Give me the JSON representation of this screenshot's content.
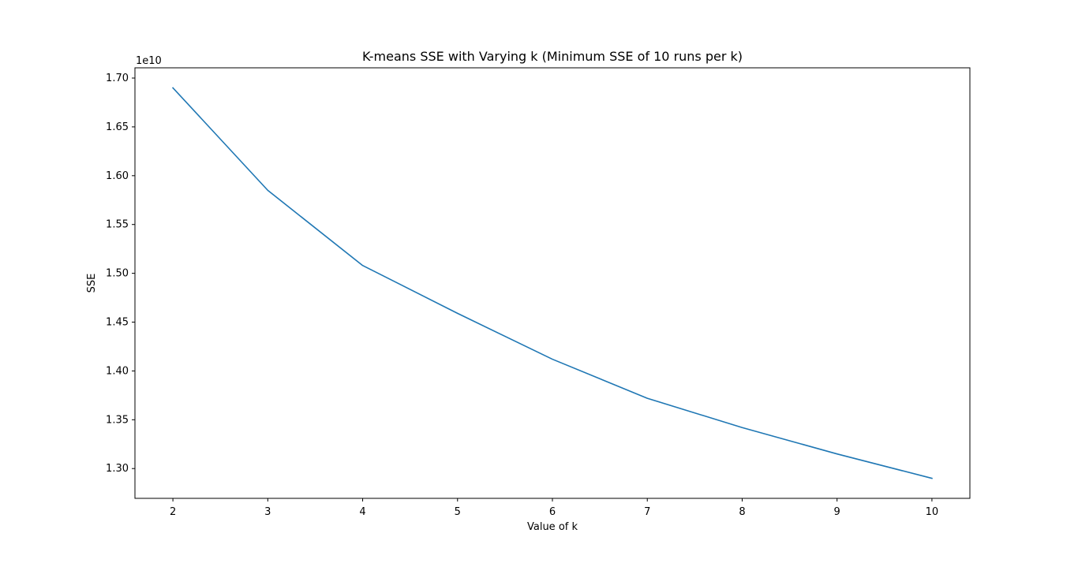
{
  "chart_data": {
    "type": "line",
    "title": "K-means SSE with Varying k (Minimum SSE of 10 runs per k)",
    "xlabel": "Value of k",
    "ylabel": "SSE",
    "y_offset_text": "1e10",
    "xlim": [
      1.6,
      10.4
    ],
    "ylim": [
      1.2695,
      1.7105
    ],
    "x_ticks": [
      2,
      3,
      4,
      5,
      6,
      7,
      8,
      9,
      10
    ],
    "y_ticks": [
      1.3,
      1.35,
      1.4,
      1.45,
      1.5,
      1.55,
      1.6,
      1.65,
      1.7
    ],
    "y_tick_labels": [
      "1.30",
      "1.35",
      "1.40",
      "1.45",
      "1.50",
      "1.55",
      "1.60",
      "1.65",
      "1.70"
    ],
    "grid": false,
    "legend": false,
    "series": [
      {
        "color": "#1f77b4",
        "x": [
          2,
          3,
          4,
          5,
          6,
          7,
          8,
          9,
          10
        ],
        "y": [
          1.69,
          1.585,
          1.508,
          1.459,
          1.412,
          1.372,
          1.342,
          1.315,
          1.29
        ]
      }
    ]
  }
}
